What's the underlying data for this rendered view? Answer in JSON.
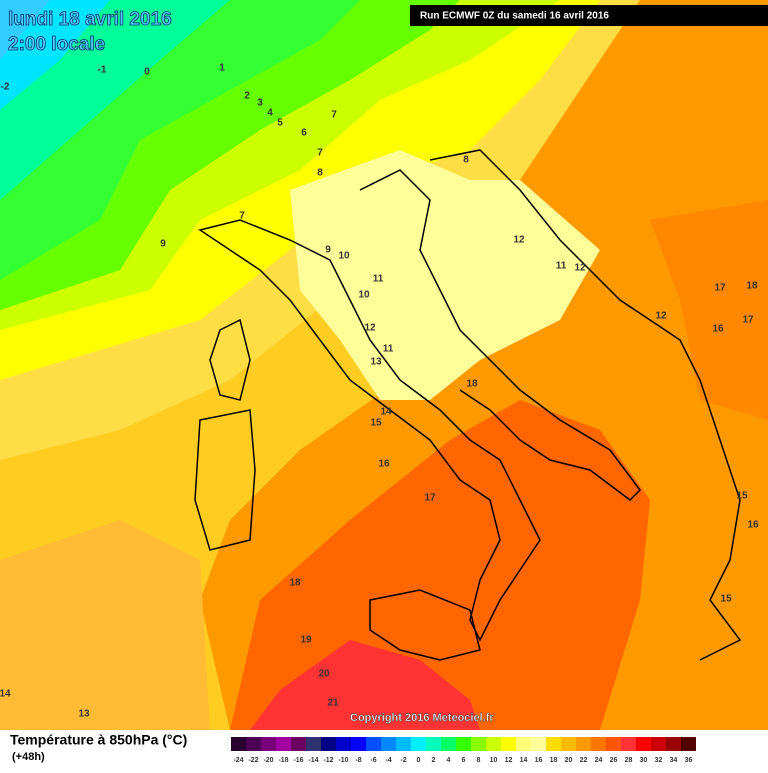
{
  "header": {
    "date": "lundi 18 avril 2016",
    "time": "2:00 locale",
    "run": "Run ECMWF 0Z du samedi 16 avril 2016"
  },
  "copyright": "Copyright 2016 Meteociel.fr",
  "footer": {
    "title": "Température à 850hPa (°C)",
    "lead": "(+48h)"
  },
  "legend": {
    "labels": [
      -24,
      -22,
      -20,
      -18,
      -16,
      -14,
      -12,
      -10,
      -8,
      -6,
      -4,
      -2,
      0,
      2,
      4,
      6,
      8,
      10,
      12,
      14,
      16,
      18,
      20,
      22,
      24,
      26,
      28,
      30,
      32,
      34,
      36
    ],
    "colors": [
      "#2a0030",
      "#4a0050",
      "#7a007a",
      "#a000a0",
      "#6a0060",
      "#303070",
      "#000080",
      "#0000cc",
      "#0000ff",
      "#0050ff",
      "#0088ff",
      "#00bbff",
      "#00eeff",
      "#00ffbb",
      "#00ff66",
      "#33ff00",
      "#88ff00",
      "#ccff00",
      "#ffff00",
      "#ffff77",
      "#ffff99",
      "#ffdd00",
      "#ffbb00",
      "#ff9900",
      "#ff7700",
      "#ff5500",
      "#ff3333",
      "#ff0000",
      "#cc0000",
      "#990000",
      "#550000"
    ]
  },
  "map_labels": [
    -2,
    -1,
    0,
    1,
    2,
    3,
    4,
    5,
    6,
    7,
    7,
    8,
    8,
    7,
    9,
    9,
    10,
    11,
    10,
    12,
    13,
    11,
    14,
    15,
    16,
    17,
    18,
    12,
    11,
    12,
    12,
    17,
    18,
    17,
    16,
    15,
    16,
    15,
    18,
    19,
    20,
    21,
    14,
    13
  ]
}
